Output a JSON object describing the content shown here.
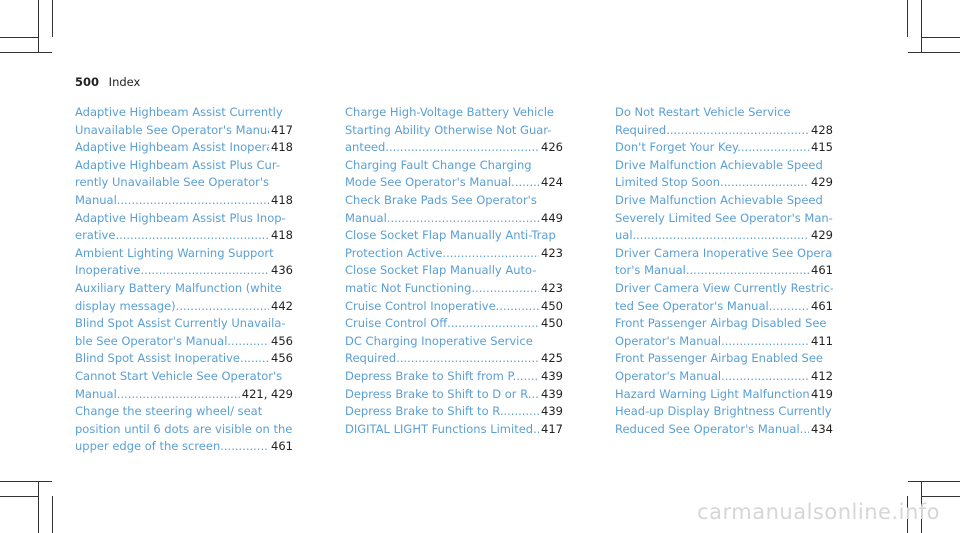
{
  "header": {
    "page_number": "500",
    "title": "Index"
  },
  "columns": [
    [
      {
        "lines": [
          "Adaptive Highbeam Assist Currently",
          "Unavailable See Operator's Manual"
        ],
        "page": "417"
      },
      {
        "lines": [
          "Adaptive Highbeam Assist Inoperative"
        ],
        "page": "418"
      },
      {
        "lines": [
          "Adaptive Highbeam Assist Plus Cur-",
          "rently Unavailable See Operator's",
          "Manual"
        ],
        "page": "418"
      },
      {
        "lines": [
          "Adaptive Highbeam Assist Plus Inop-",
          "erative"
        ],
        "page": "418"
      },
      {
        "lines": [
          "Ambient Lighting Warning Support",
          "Inoperative"
        ],
        "page": "436"
      },
      {
        "lines": [
          "Auxiliary Battery Malfunction (white",
          "display message)"
        ],
        "page": "442"
      },
      {
        "lines": [
          "Blind Spot Assist Currently Unavaila-",
          "ble See Operator's Manual"
        ],
        "page": "456"
      },
      {
        "lines": [
          "Blind Spot Assist Inoperative"
        ],
        "page": "456"
      },
      {
        "lines": [
          "Cannot Start Vehicle See Operator's",
          "Manual"
        ],
        "page": "421, 429"
      },
      {
        "lines": [
          "Change the steering wheel/ seat",
          "position until 6 dots are visible on the",
          "upper edge of the screen"
        ],
        "page": "461"
      }
    ],
    [
      {
        "lines": [
          "Charge High-Voltage Battery Vehicle",
          "Starting Ability Otherwise Not Guar-",
          "anteed"
        ],
        "page": "426"
      },
      {
        "lines": [
          "Charging Fault Change Charging",
          "Mode See Operator's Manual"
        ],
        "page": "424"
      },
      {
        "lines": [
          "Check Brake Pads See Operator's",
          "Manual"
        ],
        "page": "449"
      },
      {
        "lines": [
          "Close Socket Flap Manually Anti-Trap",
          "Protection Active"
        ],
        "page": "423"
      },
      {
        "lines": [
          "Close Socket Flap Manually Auto-",
          "matic Not Functioning"
        ],
        "page": "423"
      },
      {
        "lines": [
          "Cruise Control Inoperative"
        ],
        "page": "450"
      },
      {
        "lines": [
          "Cruise Control Off"
        ],
        "page": "450"
      },
      {
        "lines": [
          "DC Charging Inoperative Service",
          "Required"
        ],
        "page": "425"
      },
      {
        "lines": [
          "Depress Brake to Shift from P"
        ],
        "page": "439"
      },
      {
        "lines": [
          "Depress Brake to Shift to D or R"
        ],
        "page": "439"
      },
      {
        "lines": [
          "Depress Brake to Shift to R"
        ],
        "page": "439"
      },
      {
        "lines": [
          "DIGITAL LIGHT Functions Limited"
        ],
        "page": "417"
      }
    ],
    [
      {
        "lines": [
          "Do Not Restart Vehicle Service",
          "Required"
        ],
        "page": "428"
      },
      {
        "lines": [
          "Don't Forget Your Key"
        ],
        "page": "415"
      },
      {
        "lines": [
          "Drive Malfunction Achievable Speed",
          "Limited Stop Soon"
        ],
        "page": "429"
      },
      {
        "lines": [
          "Drive Malfunction Achievable Speed",
          "Severely Limited See Operator's Man-",
          "ual"
        ],
        "page": "429"
      },
      {
        "lines": [
          "Driver Camera Inoperative See Opera-",
          "tor's Manual"
        ],
        "page": "461"
      },
      {
        "lines": [
          "Driver Camera View Currently Restric-",
          "ted See Operator's Manual"
        ],
        "page": "461"
      },
      {
        "lines": [
          "Front Passenger Airbag Disabled See",
          "Operator's Manual"
        ],
        "page": "411"
      },
      {
        "lines": [
          "Front Passenger Airbag Enabled See",
          "Operator's Manual"
        ],
        "page": "412"
      },
      {
        "lines": [
          "Hazard Warning Light Malfunction"
        ],
        "page": "419"
      },
      {
        "lines": [
          "Head-up Display Brightness Currently",
          "Reduced See Operator's Manual"
        ],
        "page": "434"
      }
    ]
  ],
  "watermark": "carmanualsonline.info"
}
